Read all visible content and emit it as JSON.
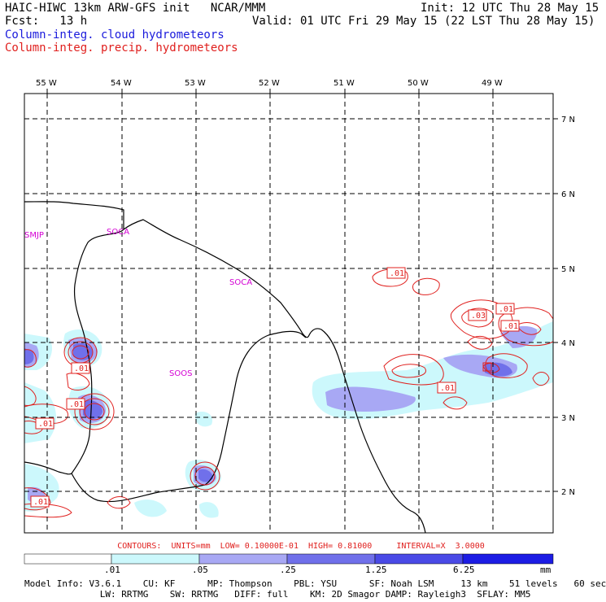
{
  "header": {
    "title": "HAIC-HIWC 13km ARW-GFS init   NCAR/MMM",
    "init": "Init: 12 UTC Thu 28 May 15",
    "fcst": "Fcst:   13 h",
    "valid": "Valid: 01 UTC Fri 29 May 15 (22 LST Thu 28 May 15)",
    "field1": "Column-integ. cloud hydrometeors",
    "field2": "Column-integ. precip. hydrometeors"
  },
  "map": {
    "lon_labels": [
      "55 W",
      "54 W",
      "53 W",
      "52 W",
      "51 W",
      "50 W",
      "49 W"
    ],
    "lat_labels": [
      "7 N",
      "6 N",
      "5 N",
      "4 N",
      "3 N",
      "2 N"
    ],
    "stations": [
      "SMJP",
      "SOCA",
      "SOCA",
      "SOOS"
    ],
    "contour_labels": [
      ".01",
      ".01",
      ".01",
      ".01",
      ".01",
      ".01",
      ".01",
      ".03",
      ".01",
      ".01"
    ],
    "colors": {
      "cloud_fill_1": "#ccf8fc",
      "cloud_fill_2": "#a8a8f4",
      "cloud_fill_3": "#7070ea",
      "cloud_fill_4": "#3c3ce0",
      "precip_contour": "#e0201e",
      "coast": "#000000",
      "station_label": "#d400d4"
    }
  },
  "colorbar": {
    "labels": [
      ".01",
      ".05",
      ".25",
      "1.25",
      "6.25",
      "mm"
    ],
    "colors": [
      "#ffffff",
      "#ccf8fc",
      "#a8a8f4",
      "#7070ea",
      "#4a4ae6",
      "#1c1ce4"
    ]
  },
  "contours_line": "CONTOURS:  UNITS=mm  LOW= 0.10000E-01  HIGH= 0.81000     INTERVAL=X  3.0000",
  "model_info": {
    "line1": "Model Info: V3.6.1    CU: KF      MP: Thompson    PBL: YSU      SF: Noah LSM     13 km    51 levels   60 sec",
    "line2": "              LW: RRTMG    SW: RRTMG   DIFF: full    KM: 2D Smagor DAMP: Rayleigh3  SFLAY: MM5"
  }
}
